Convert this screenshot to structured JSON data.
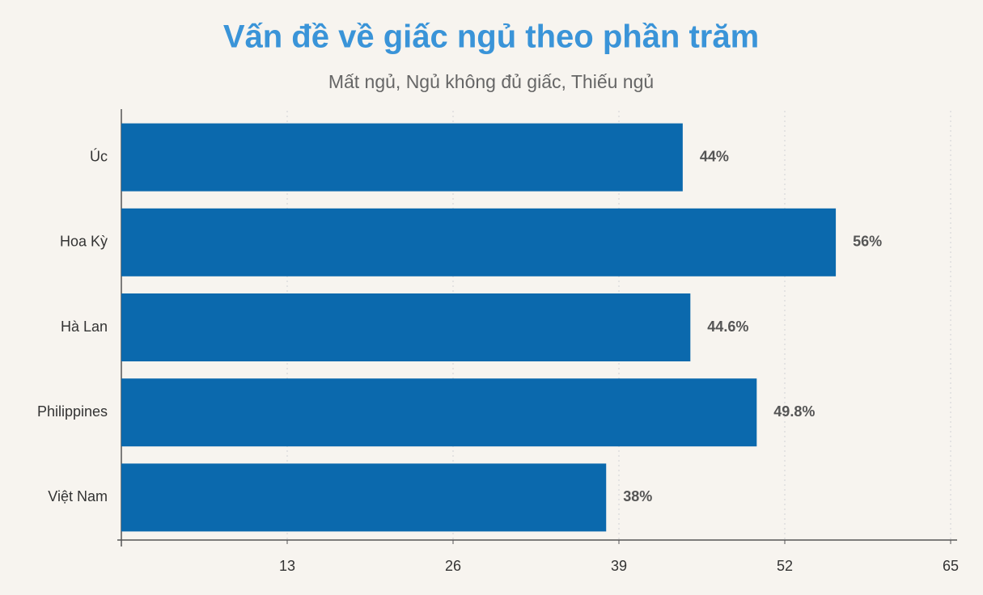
{
  "chart_data": {
    "type": "bar",
    "orientation": "horizontal",
    "title": "Vấn đề về giấc ngủ theo phần trăm",
    "subtitle": "Mất ngủ, Ngủ không đủ giấc, Thiếu ngủ",
    "categories": [
      "Úc",
      "Hoa Kỳ",
      "Hà Lan",
      "Philippines",
      "Việt Nam"
    ],
    "values": [
      44,
      56,
      44.6,
      49.8,
      38
    ],
    "value_labels": [
      "44%",
      "56%",
      "44.6%",
      "49.8%",
      "38%"
    ],
    "color": "#0b69ad",
    "xlim": [
      0,
      65
    ],
    "xticks": [
      13,
      26,
      39,
      52,
      65
    ],
    "grid": true
  }
}
